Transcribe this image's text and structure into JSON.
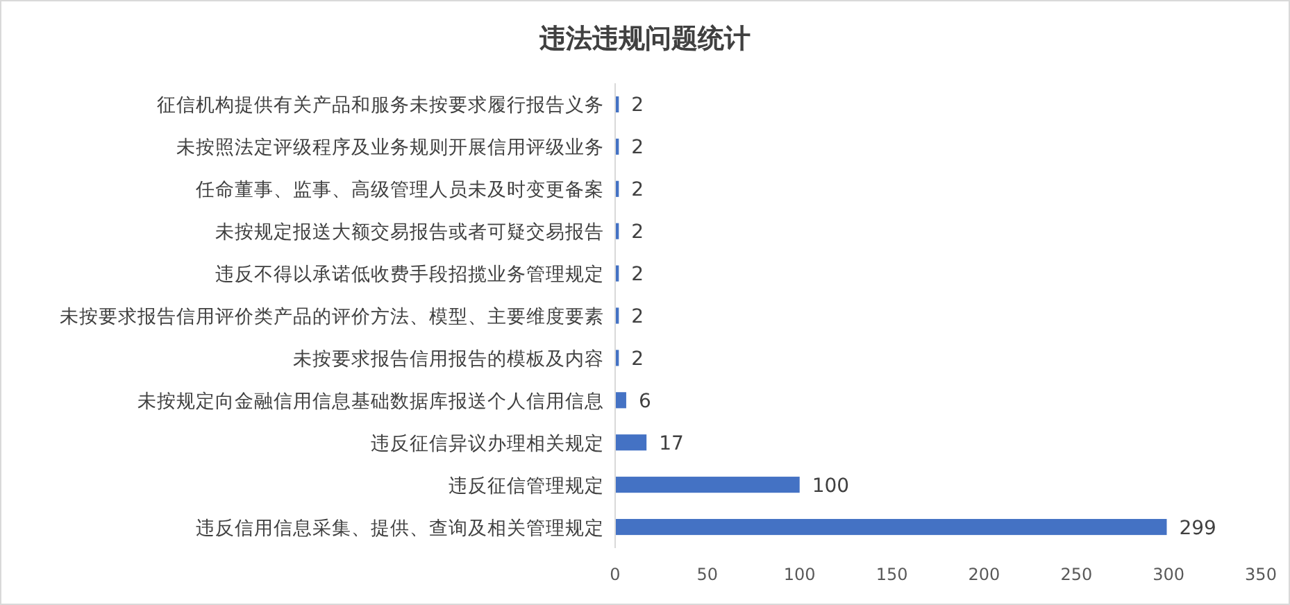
{
  "chart_data": {
    "type": "bar",
    "orientation": "horizontal",
    "title": "违法违规问题统计",
    "categories": [
      "征信机构提供有关产品和服务未按要求履行报告义务",
      "未按照法定评级程序及业务规则开展信用评级业务",
      "任命董事、监事、高级管理人员未及时变更备案",
      "未按规定报送大额交易报告或者可疑交易报告",
      "违反不得以承诺低收费手段招揽业务管理规定",
      "未按要求报告信用评价类产品的评价方法、模型、主要维度要素",
      "未按要求报告信用报告的模板及内容",
      "未按规定向金融信用信息基础数据库报送个人信用信息",
      "违反征信异议办理相关规定",
      "违反征信管理规定",
      "违反信用信息采集、提供、查询及相关管理规定"
    ],
    "values": [
      2,
      2,
      2,
      2,
      2,
      2,
      2,
      6,
      17,
      100,
      299
    ],
    "color": "#4472c4",
    "xlim": [
      0,
      350
    ],
    "xticks": [
      0,
      50,
      100,
      150,
      200,
      250,
      300,
      350
    ],
    "data_labels": true
  }
}
